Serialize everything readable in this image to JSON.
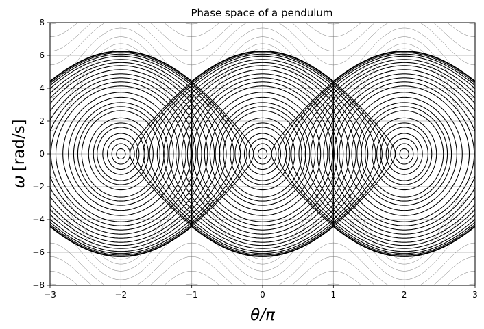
{
  "chart_data": {
    "type": "line",
    "title": "Phase space of a pendulum",
    "xlabel": "θ/π",
    "ylabel_symbol": "ω",
    "ylabel_unit": "[rad/s]",
    "xlim": [
      -3,
      3
    ],
    "ylim": [
      -8,
      8
    ],
    "xticks": [
      -3,
      -2,
      -1,
      0,
      1,
      2,
      3
    ],
    "yticks": [
      -8,
      -6,
      -4,
      -2,
      0,
      2,
      4,
      6,
      8
    ],
    "grid": true,
    "legend": "none",
    "separatrix_omega_max": 6.26,
    "libration_centers": [
      -2,
      0,
      2
    ],
    "saddle_points": [
      -3,
      -1,
      1,
      3
    ],
    "librating_orbit_amplitudes": [
      0.05,
      0.1,
      0.15,
      0.2,
      0.26,
      0.3,
      0.35,
      0.42,
      0.46,
      0.5,
      0.55,
      0.6,
      0.66,
      0.7,
      0.74,
      0.78,
      0.82,
      0.86,
      0.89,
      0.92,
      0.95,
      0.97,
      0.985,
      0.995
    ],
    "rotating_orbit_energies": [
      1.05,
      1.15,
      1.3,
      1.5,
      1.75,
      2.0,
      2.3,
      2.6,
      3.0,
      3.4
    ],
    "colors": {
      "orbit_inner": "#000000",
      "orbit_outer": "#555555",
      "grid": "#000000",
      "background": "#ffffff"
    }
  }
}
